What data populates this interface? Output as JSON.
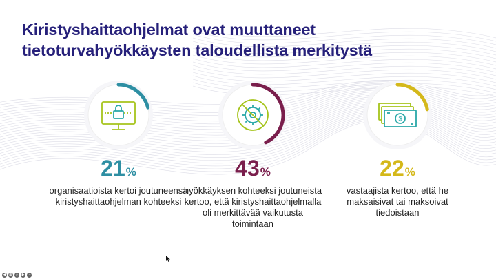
{
  "slide": {
    "title_line1": "Kiristyshaittaohjelmat ovat muuttaneet",
    "title_line2": "tietoturvahyökkäysten taloudellista merkitystä",
    "title_color": "#26207a"
  },
  "stats": [
    {
      "value": "21",
      "unit": "%",
      "value_fraction": 0.21,
      "color": "#2e8fa3",
      "icon": "locked-computer-icon",
      "description": "organisaatioista kertoi joutuneensa kiristyshaittaohjelman kohteeksi"
    },
    {
      "value": "43",
      "unit": "%",
      "value_fraction": 0.43,
      "color": "#7a1e4c",
      "icon": "disabled-gear-icon",
      "description": "hyökkäyksen kohteeksi joutuneista kertoo, että kiristyshaittaohjelmalla oli merkittävää vaikutusta toimintaan"
    },
    {
      "value": "22",
      "unit": "%",
      "value_fraction": 0.22,
      "color": "#d4b81a",
      "icon": "money-bills-icon",
      "description": "vastaajista kertoo, että he maksaisivat tai maksoivat tiedoistaan"
    }
  ],
  "icon_colors": {
    "lime": "#a6c41c",
    "teal": "#2aa8a8"
  },
  "controls": [
    "prev-icon",
    "slides-icon",
    "zoom-icon",
    "next-icon",
    "menu-icon"
  ]
}
